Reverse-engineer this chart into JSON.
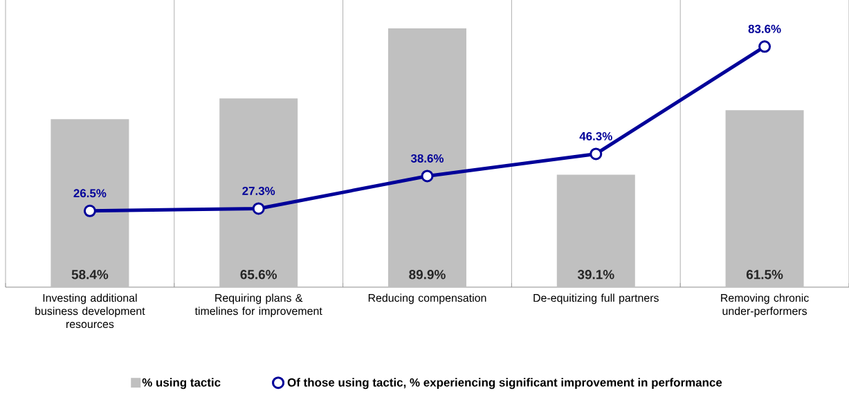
{
  "chart_data": {
    "type": "bar",
    "categories": [
      "Investing additional business development resources",
      "Requiring plans & timelines for improvement",
      "Reducing compensation",
      "De-equitizing full partners",
      "Removing chronic under-performers"
    ],
    "series": [
      {
        "name": "% using tactic",
        "color": "#c0c0c0",
        "values": [
          58.4,
          65.6,
          89.9,
          39.1,
          61.5
        ],
        "value_labels": [
          "58.4%",
          "65.6%",
          "89.9%",
          "39.1%",
          "61.5%"
        ]
      },
      {
        "name": "Of those using tactic, % experiencing significant improvement in performance",
        "type": "line",
        "color": "#000099",
        "values": [
          26.5,
          27.3,
          38.6,
          46.3,
          83.6
        ],
        "value_labels": [
          "26.5%",
          "27.3%",
          "38.6%",
          "46.3%",
          "83.6%"
        ]
      }
    ],
    "marker": "circle",
    "grid": "x",
    "legend": "bottom"
  }
}
